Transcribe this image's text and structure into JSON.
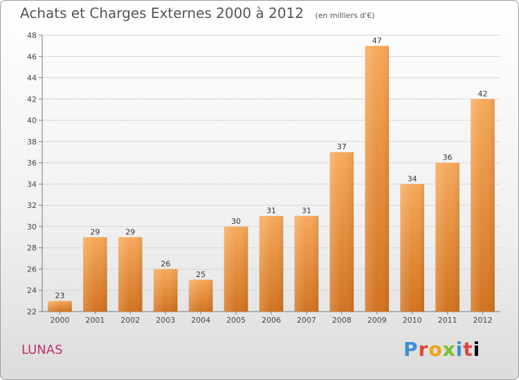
{
  "title": "Achats et Charges Externes 2000 à 2012",
  "subtitle": "(en milliers d'€)",
  "commune": "LUNAS",
  "logo": [
    "P",
    "r",
    "o",
    "x",
    "i",
    "t",
    "i"
  ],
  "colors": {
    "bar_top": "#f7a95a",
    "bar_bottom": "#d2731f",
    "grid": "#d6d6d6",
    "commune": "#c0306a"
  },
  "chart_data": {
    "type": "bar",
    "title": "Achats et Charges Externes 2000 à 2012",
    "subtitle": "(en milliers d'€)",
    "xlabel": "",
    "ylabel": "",
    "categories": [
      "2000",
      "2001",
      "2002",
      "2003",
      "2004",
      "2005",
      "2006",
      "2007",
      "2008",
      "2009",
      "2010",
      "2011",
      "2012"
    ],
    "values": [
      23,
      29,
      29,
      26,
      25,
      30,
      31,
      31,
      37,
      47,
      34,
      36,
      42
    ],
    "ylim": [
      22,
      48
    ],
    "yticks": [
      22,
      24,
      26,
      28,
      30,
      32,
      34,
      36,
      38,
      40,
      42,
      44,
      46,
      48
    ],
    "grid": true,
    "legend": "none"
  }
}
